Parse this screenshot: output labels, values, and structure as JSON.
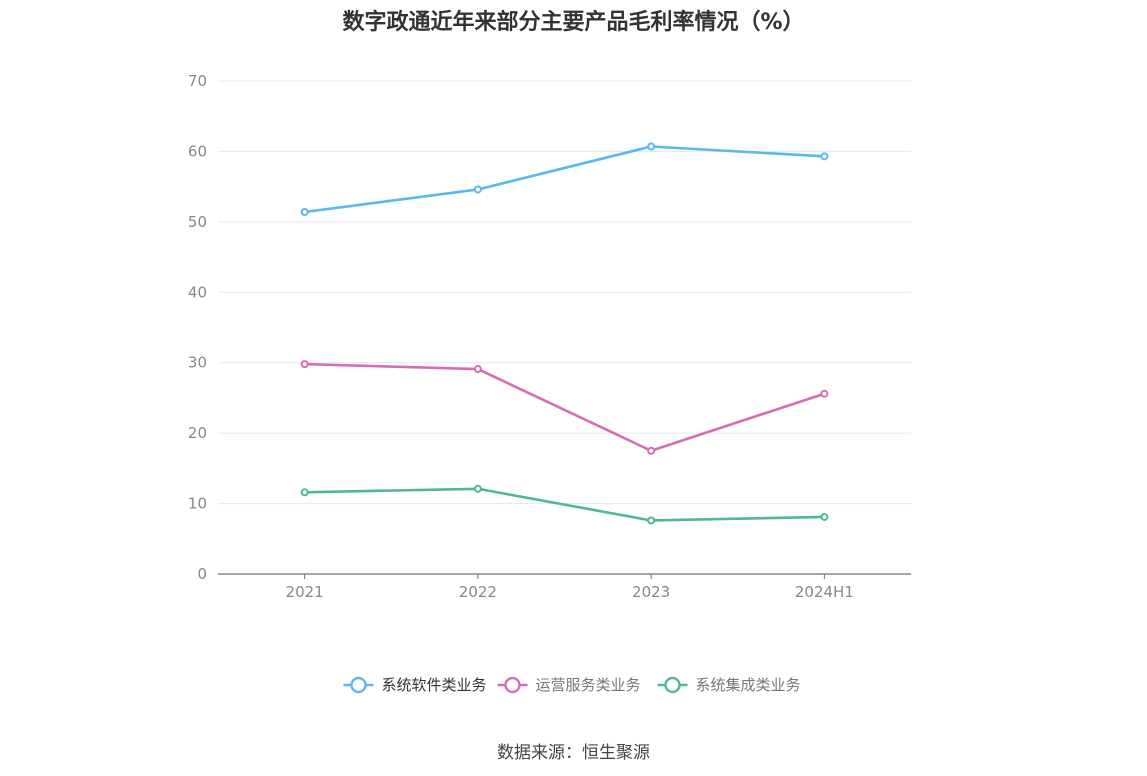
{
  "title": "数字政通近年来部分主要产品毛利率情况（%）",
  "source": "数据来源：恒生聚源",
  "chart_data": {
    "type": "line",
    "title": "数字政通近年来部分主要产品毛利率情况（%）",
    "categories": [
      "2021",
      "2022",
      "2023",
      "2024H1"
    ],
    "ylim": [
      0,
      70
    ],
    "yticks": [
      0,
      10,
      20,
      30,
      40,
      50,
      60,
      70
    ],
    "grid": true,
    "legend_position": "bottom",
    "series": [
      {
        "name": "系统软件类业务",
        "values": [
          51.4,
          54.6,
          60.7,
          59.3
        ],
        "color": "#5bb8ee"
      },
      {
        "name": "运营服务类业务",
        "values": [
          29.8,
          29.1,
          17.5,
          25.6
        ],
        "color": "#d66db4"
      },
      {
        "name": "系统集成类业务",
        "values": [
          11.6,
          12.1,
          7.6,
          8.1
        ],
        "color": "#4fb89a"
      }
    ]
  }
}
